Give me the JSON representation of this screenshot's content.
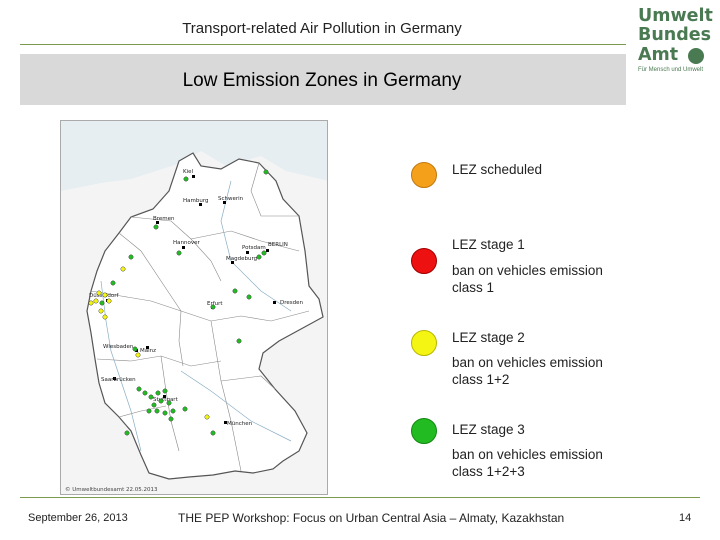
{
  "header": {
    "title": "Transport-related Air Pollution in Germany",
    "slide_title": "Low Emission Zones in Germany"
  },
  "logo": {
    "line1": "Umwelt",
    "line2": "Bundes",
    "line3": "Amt",
    "tagline": "Für Mensch und Umwelt"
  },
  "map": {
    "cities": [
      "Kiel",
      "Hamburg",
      "Schwerin",
      "Bremen",
      "Hannover",
      "BERLIN",
      "Potsdam",
      "Magdeburg",
      "Düsseldorf",
      "Dresden",
      "Erfurt",
      "Wiesbaden",
      "Mainz",
      "Saarbrücken",
      "Stuttgart",
      "München"
    ],
    "copyright": "© Umweltbundesamt 22.05.2013"
  },
  "legend": [
    {
      "label": "LEZ scheduled",
      "description": "",
      "color": "#f5a01a",
      "border": "#c07810"
    },
    {
      "label": "LEZ stage 1",
      "description": "ban on vehicles emission class 1",
      "color": "#ee1111",
      "border": "#a00000"
    },
    {
      "label": "LEZ stage 2",
      "description": "ban on vehicles emission class 1+2",
      "color": "#f5f513",
      "border": "#b7b700"
    },
    {
      "label": "LEZ stage 3",
      "description": "ban on vehicles emission class 1+2+3",
      "color": "#22bb22",
      "border": "#138813"
    }
  ],
  "footer": {
    "date": "September 26, 2013",
    "event": "THE PEP Workshop: Focus on Urban Central Asia – Almaty, Kazakhstan",
    "page": "14"
  }
}
